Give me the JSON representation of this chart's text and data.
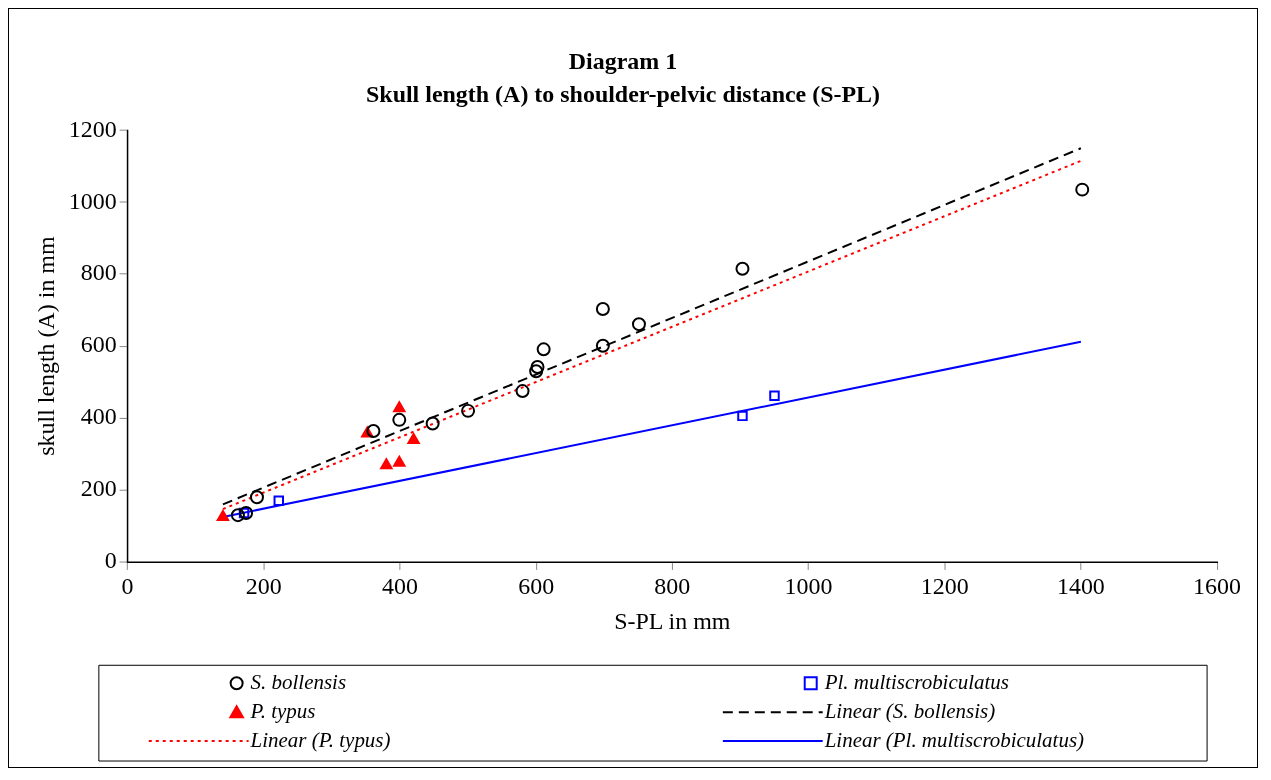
{
  "chart_data": {
    "type": "scatter",
    "title": "Diagram 1",
    "subtitle": "Skull length (A) to shoulder-pelvic distance (S-PL)",
    "xlabel": "S-PL in mm",
    "ylabel": "skull length (A) in mm",
    "xlim": [
      0,
      1600
    ],
    "xticks": [
      0,
      200,
      400,
      600,
      800,
      1000,
      1200,
      1400,
      1600
    ],
    "ylim": [
      0,
      1200
    ],
    "yticks": [
      0,
      200,
      400,
      600,
      800,
      1000,
      1200
    ],
    "grid": false,
    "legend": "bottom",
    "series": [
      {
        "name": "S. bollensis",
        "type": "scatter",
        "marker": "circle",
        "color": "#000000",
        "x": [
          162,
          174,
          190,
          361,
          399,
          448,
          500,
          580,
          600,
          602,
          611,
          698,
          698,
          751,
          903,
          1402
        ],
        "values": [
          130,
          136,
          180,
          364,
          395,
          385,
          420,
          475,
          530,
          542,
          591,
          601,
          703,
          661,
          815,
          1035
        ]
      },
      {
        "name": "Pl. multiscrobiculatus",
        "type": "scatter",
        "marker": "square",
        "color": "#0000ff",
        "x": [
          171,
          222,
          903,
          950
        ],
        "values": [
          136,
          170,
          406,
          462
        ]
      },
      {
        "name": "P. typus",
        "type": "scatter",
        "marker": "triangle",
        "color": "#ff0000",
        "x": [
          140,
          352,
          380,
          399,
          399,
          420
        ],
        "values": [
          125,
          357,
          269,
          276,
          427,
          339
        ]
      },
      {
        "name": "Linear (S. bollensis)",
        "type": "line",
        "marker": "none",
        "line_style": "dashed",
        "color": "#000000",
        "x": [
          140,
          1400
        ],
        "values": [
          160,
          1150
        ]
      },
      {
        "name": "Linear (P. typus)",
        "type": "line",
        "marker": "none",
        "line_style": "dotted",
        "color": "#ff0000",
        "x": [
          140,
          1400
        ],
        "values": [
          147,
          1115
        ]
      },
      {
        "name": "Linear (Pl. multiscrobiculatus)",
        "type": "line",
        "marker": "none",
        "line_style": "solid",
        "color": "#0000ff",
        "x": [
          140,
          1400
        ],
        "values": [
          125,
          612
        ]
      }
    ]
  }
}
